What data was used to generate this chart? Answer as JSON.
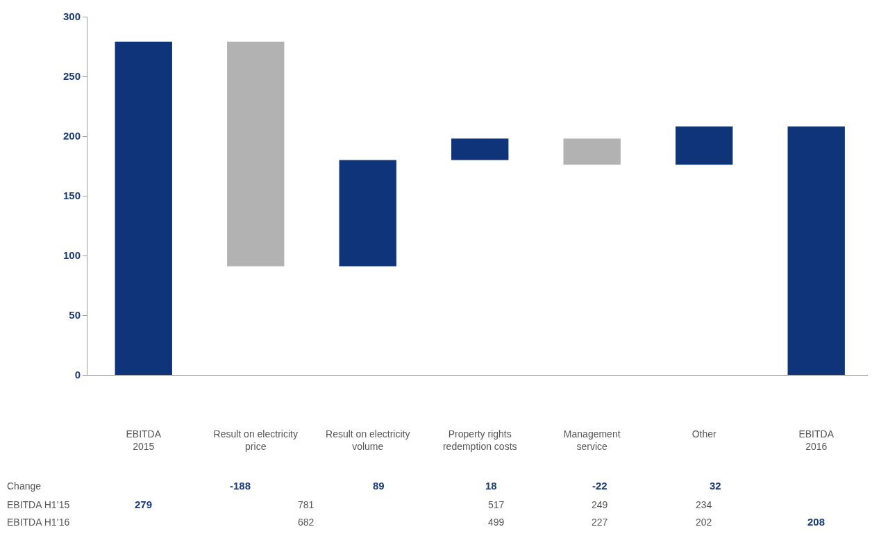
{
  "chart_data": {
    "type": "bar",
    "categories": [
      "EBITDA\n2015",
      "Result on electricity\nprice",
      "Result on electricity\nvolume",
      "Property rights\nredemption costs",
      "Management\nservice",
      "Other",
      "EBITDA\n2016"
    ],
    "values": [
      279,
      -188,
      89,
      18,
      -22,
      32,
      208
    ],
    "base": [
      0,
      279,
      91,
      180,
      198,
      176,
      0
    ],
    "colors": [
      "#0f3479",
      "#b2b2b2",
      "#0f3479",
      "#0f3479",
      "#b2b2b2",
      "#0f3479",
      "#0f3479"
    ],
    "ylim": [
      0,
      300
    ],
    "yticks": [
      0,
      50,
      100,
      150,
      200,
      250,
      300
    ],
    "annotations": [
      "Change",
      "EBITDA H1’15",
      "EBITDA H1’16",
      "-188",
      "89",
      "18",
      "-22",
      "32",
      "279",
      "781",
      "517",
      "249",
      "234",
      "682",
      "499",
      "227",
      "202",
      "208"
    ]
  }
}
